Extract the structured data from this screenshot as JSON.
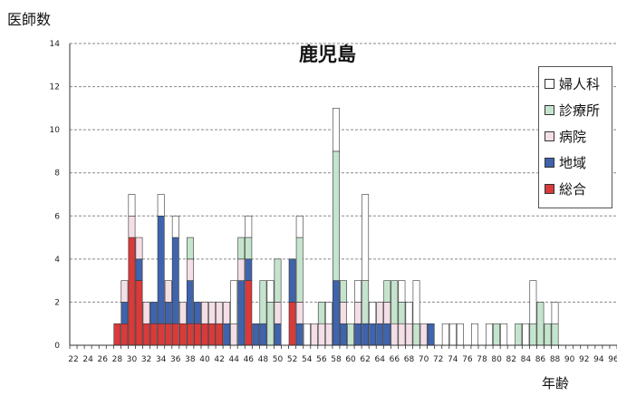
{
  "chart_data": {
    "type": "bar",
    "stacked": true,
    "title": "鹿児島",
    "ylabel": "医師数",
    "xlabel": "年齢",
    "ylim": [
      0,
      14
    ],
    "yticks": [
      0,
      2,
      4,
      6,
      8,
      10,
      12,
      14
    ],
    "grid": true,
    "legend_position": "top-right",
    "x_range": [
      22,
      96
    ],
    "xtick_step": 2,
    "series": [
      {
        "name": "総合",
        "color": "#d93a3a",
        "values": {
          "28": 1,
          "29": 1,
          "30": 5,
          "31": 3,
          "32": 1,
          "33": 1,
          "34": 1,
          "35": 1,
          "36": 1,
          "37": 1,
          "38": 1,
          "39": 1,
          "40": 1,
          "41": 1,
          "42": 1,
          "46": 3,
          "52": 2
        }
      },
      {
        "name": "地域",
        "color": "#3f64ad",
        "values": {
          "29": 1,
          "31": 1,
          "33": 1,
          "34": 5,
          "35": 1,
          "36": 4,
          "38": 2,
          "39": 1,
          "43": 1,
          "45": 3,
          "46": 1,
          "47": 1,
          "48": 1,
          "50": 1,
          "52": 2,
          "53": 1,
          "58": 3,
          "59": 1,
          "61": 1,
          "62": 1,
          "63": 1,
          "64": 1,
          "65": 1,
          "71": 1
        }
      },
      {
        "name": "病院",
        "color": "#f4dfe6",
        "values": {
          "29": 1,
          "30": 1,
          "31": 1,
          "32": 1,
          "35": 1,
          "37": 1,
          "38": 1,
          "40": 1,
          "41": 1,
          "42": 1,
          "43": 1,
          "44": 1,
          "45": 1,
          "50": 1,
          "53": 1,
          "55": 1,
          "56": 1,
          "57": 1,
          "59": 1,
          "61": 1,
          "64": 1,
          "65": 1,
          "66": 1,
          "67": 1,
          "68": 1,
          "70": 1
        }
      },
      {
        "name": "診療所",
        "color": "#c5e4cd",
        "values": {
          "38": 1,
          "45": 1,
          "46": 1,
          "48": 2,
          "49": 2,
          "50": 2,
          "53": 3,
          "56": 1,
          "58": 6,
          "59": 1,
          "60": 1,
          "62": 2,
          "65": 1,
          "66": 2,
          "67": 1,
          "69": 1,
          "80": 1,
          "83": 1,
          "85": 1,
          "86": 2,
          "87": 1,
          "88": 1
        }
      },
      {
        "name": "婦人科",
        "color": "#ffffff",
        "values": {
          "30": 1,
          "34": 1,
          "36": 1,
          "44": 2,
          "46": 1,
          "49": 1,
          "53": 1,
          "54": 1,
          "57": 1,
          "58": 2,
          "61": 1,
          "62": 4,
          "63": 1,
          "67": 1,
          "68": 1,
          "69": 2,
          "73": 1,
          "74": 1,
          "75": 1,
          "77": 1,
          "79": 1,
          "81": 1,
          "84": 1,
          "85": 2,
          "88": 1
        }
      }
    ]
  }
}
